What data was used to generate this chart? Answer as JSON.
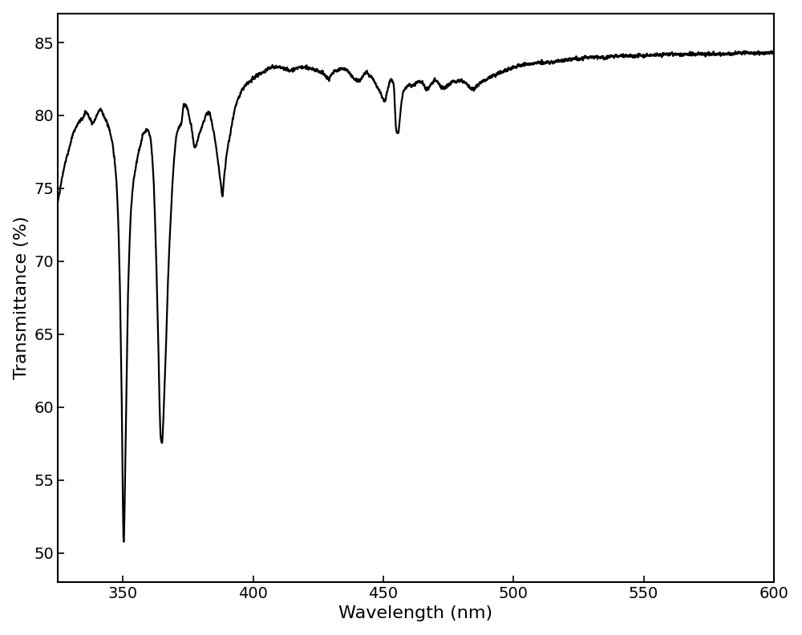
{
  "title": "",
  "xlabel": "Wavelength (nm)",
  "ylabel": "Transmittance (%)",
  "xlim": [
    325,
    600
  ],
  "ylim": [
    48,
    87
  ],
  "xticks": [
    350,
    400,
    450,
    500,
    550,
    600
  ],
  "yticks": [
    50,
    55,
    60,
    65,
    70,
    75,
    80,
    85
  ],
  "line_color": "#000000",
  "line_width": 1.6,
  "background_color": "#ffffff",
  "xlabel_fontsize": 16,
  "ylabel_fontsize": 16,
  "tick_fontsize": 14,
  "figsize": [
    10.0,
    7.92
  ],
  "dpi": 100,
  "key_points": [
    [
      325.0,
      74.0
    ],
    [
      327.5,
      76.5
    ],
    [
      329.0,
      77.5
    ],
    [
      331.0,
      78.8
    ],
    [
      333.0,
      79.5
    ],
    [
      334.5,
      79.8
    ],
    [
      336.0,
      80.2
    ],
    [
      337.5,
      79.7
    ],
    [
      338.5,
      79.5
    ],
    [
      340.0,
      80.0
    ],
    [
      341.5,
      80.4
    ],
    [
      343.0,
      79.8
    ],
    [
      344.5,
      79.2
    ],
    [
      346.0,
      78.0
    ],
    [
      347.5,
      75.5
    ],
    [
      348.5,
      71.0
    ],
    [
      349.5,
      61.0
    ],
    [
      350.3,
      50.8
    ],
    [
      351.0,
      57.0
    ],
    [
      352.0,
      68.0
    ],
    [
      353.5,
      74.5
    ],
    [
      355.0,
      76.5
    ],
    [
      356.5,
      77.8
    ],
    [
      358.0,
      78.8
    ],
    [
      359.5,
      79.0
    ],
    [
      360.5,
      78.5
    ],
    [
      361.5,
      76.5
    ],
    [
      362.5,
      72.0
    ],
    [
      363.5,
      65.0
    ],
    [
      364.5,
      58.0
    ],
    [
      365.0,
      57.5
    ],
    [
      365.5,
      59.0
    ],
    [
      366.5,
      64.0
    ],
    [
      367.5,
      69.5
    ],
    [
      368.5,
      73.5
    ],
    [
      369.5,
      76.5
    ],
    [
      370.5,
      78.5
    ],
    [
      371.5,
      79.2
    ],
    [
      372.5,
      79.5
    ],
    [
      373.5,
      80.8
    ],
    [
      374.5,
      80.6
    ],
    [
      375.5,
      79.8
    ],
    [
      376.5,
      79.0
    ],
    [
      377.5,
      77.8
    ],
    [
      378.5,
      78.2
    ],
    [
      379.5,
      78.8
    ],
    [
      381.0,
      79.5
    ],
    [
      382.5,
      80.2
    ],
    [
      383.5,
      80.0
    ],
    [
      384.5,
      79.2
    ],
    [
      385.5,
      78.2
    ],
    [
      386.5,
      76.8
    ],
    [
      387.5,
      75.5
    ],
    [
      388.2,
      74.5
    ],
    [
      389.0,
      76.0
    ],
    [
      390.0,
      77.5
    ],
    [
      391.5,
      79.0
    ],
    [
      393.0,
      80.5
    ],
    [
      394.5,
      81.2
    ],
    [
      396.0,
      81.8
    ],
    [
      398.0,
      82.2
    ],
    [
      400.0,
      82.5
    ],
    [
      402.0,
      82.8
    ],
    [
      404.0,
      83.0
    ],
    [
      406.0,
      83.2
    ],
    [
      408.0,
      83.3
    ],
    [
      410.0,
      83.3
    ],
    [
      412.0,
      83.2
    ],
    [
      414.0,
      83.1
    ],
    [
      416.0,
      83.2
    ],
    [
      418.0,
      83.3
    ],
    [
      420.0,
      83.3
    ],
    [
      422.0,
      83.2
    ],
    [
      424.0,
      83.1
    ],
    [
      426.0,
      83.0
    ],
    [
      427.5,
      82.8
    ],
    [
      429.0,
      82.5
    ],
    [
      430.0,
      82.8
    ],
    [
      431.0,
      83.0
    ],
    [
      432.5,
      83.1
    ],
    [
      434.0,
      83.2
    ],
    [
      436.0,
      83.1
    ],
    [
      437.5,
      82.8
    ],
    [
      439.0,
      82.5
    ],
    [
      440.5,
      82.3
    ],
    [
      441.5,
      82.5
    ],
    [
      442.5,
      82.8
    ],
    [
      443.5,
      83.0
    ],
    [
      444.5,
      82.8
    ],
    [
      446.0,
      82.5
    ],
    [
      447.5,
      82.0
    ],
    [
      449.0,
      81.5
    ],
    [
      450.5,
      81.0
    ],
    [
      452.0,
      82.0
    ],
    [
      453.0,
      82.5
    ],
    [
      454.0,
      82.0
    ],
    [
      455.0,
      79.0
    ],
    [
      455.8,
      78.8
    ],
    [
      456.5,
      80.0
    ],
    [
      457.5,
      81.5
    ],
    [
      459.0,
      82.0
    ],
    [
      461.0,
      82.2
    ],
    [
      463.0,
      82.5
    ],
    [
      465.0,
      82.3
    ],
    [
      466.5,
      82.0
    ],
    [
      468.0,
      82.2
    ],
    [
      470.0,
      82.5
    ],
    [
      472.0,
      82.3
    ],
    [
      474.0,
      82.0
    ],
    [
      475.5,
      82.2
    ],
    [
      477.0,
      82.5
    ],
    [
      479.0,
      82.5
    ],
    [
      481.0,
      82.3
    ],
    [
      483.0,
      82.2
    ],
    [
      485.0,
      82.0
    ],
    [
      487.0,
      82.2
    ],
    [
      490.0,
      82.5
    ],
    [
      493.0,
      82.8
    ],
    [
      496.0,
      83.0
    ],
    [
      500.0,
      83.3
    ],
    [
      505.0,
      83.5
    ],
    [
      510.0,
      83.6
    ],
    [
      515.0,
      83.7
    ],
    [
      520.0,
      83.8
    ],
    [
      525.0,
      83.9
    ],
    [
      530.0,
      84.0
    ],
    [
      535.0,
      84.0
    ],
    [
      540.0,
      84.1
    ],
    [
      550.0,
      84.1
    ],
    [
      560.0,
      84.2
    ],
    [
      570.0,
      84.2
    ],
    [
      580.0,
      84.2
    ],
    [
      590.0,
      84.3
    ],
    [
      600.0,
      84.3
    ]
  ]
}
